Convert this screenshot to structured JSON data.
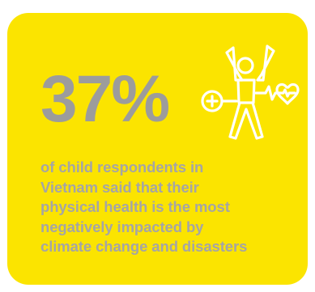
{
  "infographic": {
    "stat_value": "37%",
    "caption_lines": [
      "of child respondents in",
      "Vietnam said that their",
      "physical health is the most",
      "negatively impacted by",
      "climate change and disasters"
    ],
    "icon": "health-person-icon"
  },
  "colors": {
    "background": "#fbe400",
    "text": "#a5a5a5",
    "icon_stroke": "#ffffff"
  }
}
